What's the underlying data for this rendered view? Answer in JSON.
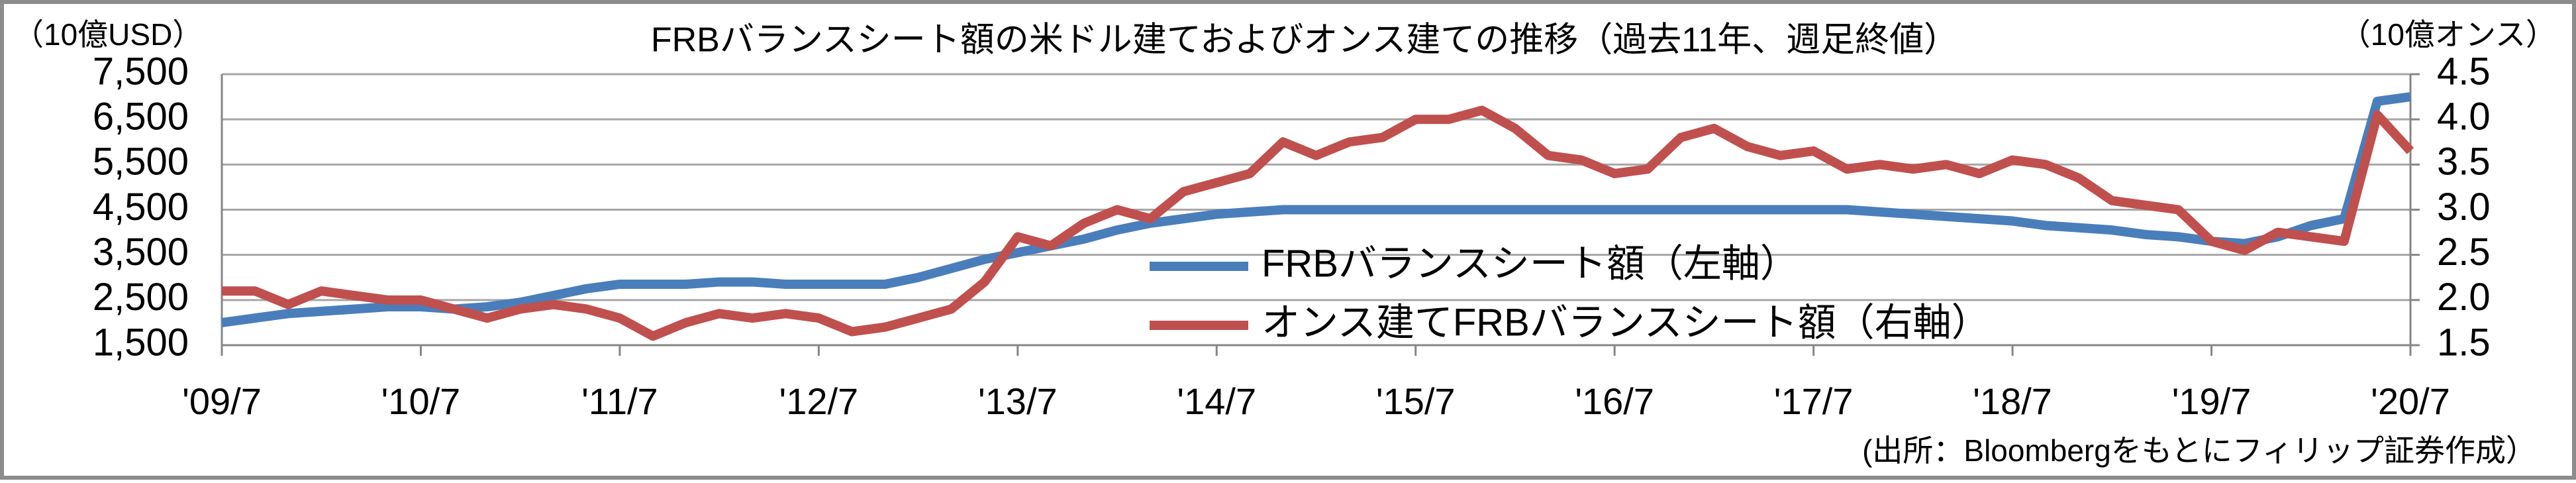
{
  "chart_data": {
    "type": "line",
    "title": "FRBバランスシート額の米ドル建ておよびオンス建ての推移（過去11年、週足終値）",
    "y_label": "（10億USD）",
    "y2_label": "（10億オンス）",
    "source": "(出所：Bloombergをもとにフィリップ証券作成）",
    "x": [
      "2009-07",
      "2009-09",
      "2009-11",
      "2010-01",
      "2010-03",
      "2010-05",
      "2010-07",
      "2010-09",
      "2010-11",
      "2011-01",
      "2011-03",
      "2011-05",
      "2011-07",
      "2011-09",
      "2011-11",
      "2012-01",
      "2012-03",
      "2012-05",
      "2012-07",
      "2012-09",
      "2012-11",
      "2013-01",
      "2013-03",
      "2013-05",
      "2013-07",
      "2013-09",
      "2013-11",
      "2014-01",
      "2014-03",
      "2014-05",
      "2014-07",
      "2014-09",
      "2014-11",
      "2015-01",
      "2015-03",
      "2015-05",
      "2015-07",
      "2015-09",
      "2015-11",
      "2016-01",
      "2016-03",
      "2016-05",
      "2016-07",
      "2016-09",
      "2016-11",
      "2017-01",
      "2017-03",
      "2017-05",
      "2017-07",
      "2017-09",
      "2017-11",
      "2018-01",
      "2018-03",
      "2018-05",
      "2018-07",
      "2018-09",
      "2018-11",
      "2019-01",
      "2019-03",
      "2019-05",
      "2019-07",
      "2019-09",
      "2019-11",
      "2020-01",
      "2020-03",
      "2020-05",
      "2020-07"
    ],
    "xlim": [
      "2009-07",
      "2020-07"
    ],
    "xticks": [
      {
        "value": "2009-07",
        "label": "'09/7"
      },
      {
        "value": "2010-07",
        "label": "'10/7"
      },
      {
        "value": "2011-07",
        "label": "'11/7"
      },
      {
        "value": "2012-07",
        "label": "'12/7"
      },
      {
        "value": "2013-07",
        "label": "'13/7"
      },
      {
        "value": "2014-07",
        "label": "'14/7"
      },
      {
        "value": "2015-07",
        "label": "'15/7"
      },
      {
        "value": "2016-07",
        "label": "'16/7"
      },
      {
        "value": "2017-07",
        "label": "'17/7"
      },
      {
        "value": "2018-07",
        "label": "'18/7"
      },
      {
        "value": "2019-07",
        "label": "'19/7"
      },
      {
        "value": "2020-07",
        "label": "'20/7"
      }
    ],
    "ylim": [
      1500,
      7500
    ],
    "yticks": [
      {
        "value": 1500,
        "label": "1,500"
      },
      {
        "value": 2500,
        "label": "2,500"
      },
      {
        "value": 3500,
        "label": "3,500"
      },
      {
        "value": 4500,
        "label": "4,500"
      },
      {
        "value": 5500,
        "label": "5,500"
      },
      {
        "value": 6500,
        "label": "6,500"
      },
      {
        "value": 7500,
        "label": "7,500"
      }
    ],
    "y2lim": [
      1.5,
      4.5
    ],
    "y2ticks": [
      1.5,
      {
        "value": 2,
        "label": "2.0"
      },
      2.5,
      {
        "value": 3,
        "label": "3.0"
      },
      3.5,
      {
        "value": 4,
        "label": "4.0"
      },
      4.5
    ],
    "grid": true,
    "series": [
      {
        "name": "FRBバランスシート額（左軸）",
        "color": "#4a7ebb",
        "values": [
          2000,
          2100,
          2200,
          2250,
          2300,
          2350,
          2350,
          2300,
          2350,
          2450,
          2600,
          2750,
          2850,
          2850,
          2850,
          2900,
          2900,
          2850,
          2850,
          2850,
          2850,
          3000,
          3200,
          3400,
          3550,
          3700,
          3850,
          4050,
          4200,
          4300,
          4400,
          4450,
          4500,
          4500,
          4500,
          4500,
          4500,
          4500,
          4500,
          4500,
          4500,
          4500,
          4500,
          4500,
          4500,
          4500,
          4500,
          4500,
          4500,
          4500,
          4450,
          4400,
          4350,
          4300,
          4250,
          4150,
          4100,
          4050,
          3950,
          3900,
          3800,
          3750,
          3900,
          4150,
          4300,
          6900,
          7000
        ]
      },
      {
        "name": "オンス建てFRBバランスシート額（右軸）",
        "color": "#c0504d",
        "axis": "y2",
        "values": [
          2.1,
          2.1,
          1.95,
          2.1,
          2.05,
          2.0,
          2.0,
          1.9,
          1.8,
          1.9,
          1.95,
          1.9,
          1.8,
          1.6,
          1.75,
          1.85,
          1.8,
          1.85,
          1.8,
          1.65,
          1.7,
          1.8,
          1.9,
          2.2,
          2.7,
          2.6,
          2.85,
          3.0,
          2.9,
          3.2,
          3.3,
          3.4,
          3.75,
          3.6,
          3.75,
          3.8,
          4.0,
          4.0,
          4.1,
          3.9,
          3.6,
          3.55,
          3.4,
          3.45,
          3.8,
          3.9,
          3.7,
          3.6,
          3.65,
          3.45,
          3.5,
          3.45,
          3.5,
          3.4,
          3.55,
          3.5,
          3.35,
          3.1,
          3.05,
          3.0,
          2.65,
          2.55,
          2.75,
          2.7,
          2.65,
          4.05,
          3.65
        ]
      }
    ]
  }
}
